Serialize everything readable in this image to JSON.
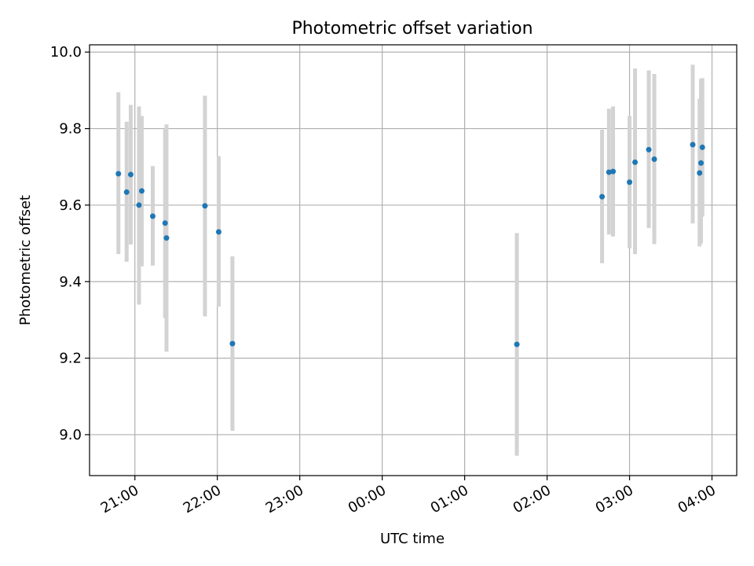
{
  "chart_data": {
    "type": "scatter",
    "title": "Photometric offset variation",
    "xlabel": "UTC time",
    "ylabel": "Photometric offset",
    "x_tick_labels": [
      "21:00",
      "22:00",
      "23:00",
      "00:00",
      "01:00",
      "02:00",
      "03:00",
      "04:00"
    ],
    "y_tick_labels": [
      "9.0",
      "9.2",
      "9.4",
      "9.6",
      "9.8",
      "10.0"
    ],
    "xlim": [
      "20:27",
      "04:18"
    ],
    "ylim": [
      8.893,
      10.019
    ],
    "grid": true,
    "colors": {
      "point": "#1f77b4",
      "errorbar": "#d3d3d3",
      "grid": "#b0b0b0"
    },
    "points": [
      {
        "x": "20:48",
        "y": 9.682,
        "yerr_low": 9.472,
        "yerr_high": 9.895
      },
      {
        "x": "20:54",
        "y": 9.634,
        "yerr_low": 9.452,
        "yerr_high": 9.818
      },
      {
        "x": "20:57",
        "y": 9.68,
        "yerr_low": 9.497,
        "yerr_high": 9.862
      },
      {
        "x": "21:03",
        "y": 9.6,
        "yerr_low": 9.34,
        "yerr_high": 9.858
      },
      {
        "x": "21:05",
        "y": 9.637,
        "yerr_low": 9.44,
        "yerr_high": 9.833
      },
      {
        "x": "21:13",
        "y": 9.571,
        "yerr_low": 9.442,
        "yerr_high": 9.702
      },
      {
        "x": "21:22",
        "y": 9.553,
        "yerr_low": 9.305,
        "yerr_high": 9.8
      },
      {
        "x": "21:23",
        "y": 9.514,
        "yerr_low": 9.217,
        "yerr_high": 9.811
      },
      {
        "x": "21:51",
        "y": 9.598,
        "yerr_low": 9.309,
        "yerr_high": 9.886
      },
      {
        "x": "22:01",
        "y": 9.53,
        "yerr_low": 9.335,
        "yerr_high": 9.728
      },
      {
        "x": "22:11",
        "y": 9.238,
        "yerr_low": 9.01,
        "yerr_high": 9.466
      },
      {
        "x": "01:38",
        "y": 9.236,
        "yerr_low": 8.945,
        "yerr_high": 9.527
      },
      {
        "x": "02:40",
        "y": 9.622,
        "yerr_low": 9.448,
        "yerr_high": 9.797
      },
      {
        "x": "02:45",
        "y": 9.686,
        "yerr_low": 9.523,
        "yerr_high": 9.852
      },
      {
        "x": "02:48",
        "y": 9.688,
        "yerr_low": 9.518,
        "yerr_high": 9.858
      },
      {
        "x": "03:00",
        "y": 9.66,
        "yerr_low": 9.487,
        "yerr_high": 9.833
      },
      {
        "x": "03:04",
        "y": 9.712,
        "yerr_low": 9.472,
        "yerr_high": 9.957
      },
      {
        "x": "03:14",
        "y": 9.745,
        "yerr_low": 9.54,
        "yerr_high": 9.952
      },
      {
        "x": "03:18",
        "y": 9.72,
        "yerr_low": 9.498,
        "yerr_high": 9.943
      },
      {
        "x": "03:46",
        "y": 9.758,
        "yerr_low": 9.552,
        "yerr_high": 9.967
      },
      {
        "x": "03:51",
        "y": 9.684,
        "yerr_low": 9.492,
        "yerr_high": 9.878
      },
      {
        "x": "03:52",
        "y": 9.71,
        "yerr_low": 9.5,
        "yerr_high": 9.93
      },
      {
        "x": "03:53",
        "y": 9.751,
        "yerr_low": 9.57,
        "yerr_high": 9.932
      }
    ]
  }
}
